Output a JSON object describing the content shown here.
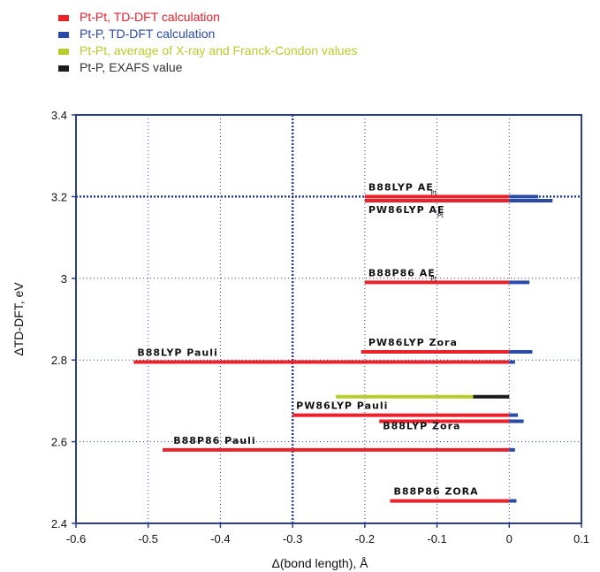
{
  "chart_data": {
    "type": "bar",
    "orientation": "horizontal",
    "xlabel": "Δ(bond length), Å",
    "ylabel": "ΔTD-DFT, eV",
    "xlim": [
      -0.6,
      0.1
    ],
    "ylim": [
      2.4,
      3.4
    ],
    "xticks": [
      "-0.6",
      "-0.5",
      "-0.4",
      "-0.3",
      "-0.2",
      "-0.1",
      "0",
      "0.1"
    ],
    "yticks": [
      "2.4",
      "2.6",
      "2.8",
      "3",
      "3.2",
      "3.4"
    ],
    "reference_lines": {
      "x": -0.3,
      "y": 3.2
    },
    "legend": {
      "placement": "top-left",
      "entries": [
        {
          "label": "Pt-Pt, TD-DFT calculation",
          "color": "#e8212b"
        },
        {
          "label": "Pt-P, TD-DFT calculation",
          "color": "#2a4aa8"
        },
        {
          "label": "Pt-Pt, average of X-ray and Franck-Condon values",
          "color": "#b7cc2c"
        },
        {
          "label": "Pt-P, EXAFS value",
          "color": "#1a1a1a"
        }
      ]
    },
    "bars": [
      {
        "y": 3.2,
        "pt_pt": -0.2,
        "pt_p": 0.04
      },
      {
        "y": 3.19,
        "pt_pt": -0.2,
        "pt_p": 0.06
      },
      {
        "y": 2.99,
        "pt_pt": -0.2,
        "pt_p": 0.028
      },
      {
        "y": 2.82,
        "pt_pt": -0.205,
        "pt_p": 0.032
      },
      {
        "y": 2.795,
        "pt_pt": -0.52,
        "pt_p": 0.008
      },
      {
        "y": 2.71,
        "pt_pt": -0.24,
        "pt_p": -0.05,
        "kind": "experiment"
      },
      {
        "y": 2.665,
        "pt_pt": -0.3,
        "pt_p": 0.012
      },
      {
        "y": 2.65,
        "pt_pt": -0.18,
        "pt_p": 0.02
      },
      {
        "y": 2.58,
        "pt_pt": -0.48,
        "pt_p": 0.008
      },
      {
        "y": 2.455,
        "pt_pt": -0.165,
        "pt_p": 0.01
      }
    ],
    "annotations": [
      {
        "text": "B88LYP AE",
        "sub": "Pt",
        "x": -0.2,
        "y": 3.215
      },
      {
        "text": "PW86LYP AE",
        "sub": "Pt",
        "x": -0.2,
        "y": 3.16
      },
      {
        "text": "B88P86 AE",
        "sub": "Pt",
        "x": -0.2,
        "y": 3.005
      },
      {
        "text": "PW86LYP Zora",
        "sub": "",
        "x": -0.2,
        "y": 2.835
      },
      {
        "text": "B88LYP Pauli",
        "sub": "",
        "x": -0.52,
        "y": 2.81
      },
      {
        "text": "PW86LYP Pauli",
        "sub": "",
        "x": -0.3,
        "y": 2.68
      },
      {
        "text": "B88LYP Zora",
        "sub": "",
        "x": -0.18,
        "y": 2.63
      },
      {
        "text": "B88P86 Pauli",
        "sub": "",
        "x": -0.47,
        "y": 2.595
      },
      {
        "text": "B88P86 ZORA",
        "sub": "",
        "x": -0.165,
        "y": 2.47
      }
    ]
  }
}
